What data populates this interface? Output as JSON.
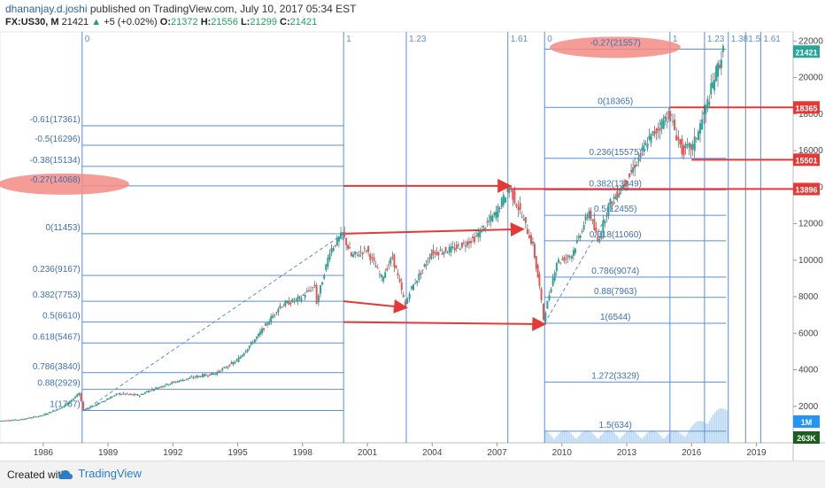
{
  "header": {
    "author": "dhananjay.d.joshi",
    "published": "published on TradingView.com, July 10, 2017 05:34 EST",
    "symbol": "FX:US30, M",
    "last": "21421",
    "change": "+5 (+0.02%)",
    "o_label": "O:",
    "o": "21372",
    "h_label": "H:",
    "h": "21556",
    "l_label": "L:",
    "l": "21299",
    "c_label": "C:",
    "c": "21421"
  },
  "footer": {
    "created_with": "Created with",
    "brand": "TradingView"
  },
  "colors": {
    "candle_up": "#26a69a",
    "candle_down": "#ef5350",
    "fib": "#5b8ed6",
    "arrow": "#e53935",
    "highlight": "#f28b82"
  },
  "chart_data": {
    "type": "candlestick",
    "x_ticks": [
      "1986",
      "1989",
      "1992",
      "1995",
      "1998",
      "2001",
      "2004",
      "2007",
      "2010",
      "2013",
      "2016",
      "2019"
    ],
    "y_ticks": [
      "22000",
      "20000",
      "18000",
      "16000",
      "14000",
      "12000",
      "10000",
      "8000",
      "6000",
      "4000",
      "2000"
    ],
    "ylim": [
      0,
      22500
    ],
    "price_tags": [
      {
        "label": "21421",
        "value": 21421,
        "color": "#26a69a"
      },
      {
        "label": "18365",
        "value": 18365,
        "color": "#e53935"
      },
      {
        "label": "15501",
        "value": 15501,
        "color": "#e53935"
      },
      {
        "label": "13896",
        "value": 13896,
        "color": "#e53935"
      },
      {
        "label": "1M",
        "color": "#2196f3"
      },
      {
        "label": "263K",
        "color": "#1b5e20"
      }
    ],
    "fib_retracement_1": {
      "x_start": 1987.8,
      "x_end": 1999.9,
      "levels": [
        {
          "label": "-0.61(17361)",
          "value": 17361
        },
        {
          "label": "-0.5(16296)",
          "value": 16296
        },
        {
          "label": "-0.38(15134)",
          "value": 15134
        },
        {
          "label": "-0.27(14068)",
          "value": 14068,
          "highlight": true
        },
        {
          "label": "0(11453)",
          "value": 11453
        },
        {
          "label": "0.236(9167)",
          "value": 9167
        },
        {
          "label": "0.382(7753)",
          "value": 7753
        },
        {
          "label": "0.5(6610)",
          "value": 6610
        },
        {
          "label": "0.618(5467)",
          "value": 5467
        },
        {
          "label": "0.786(3840)",
          "value": 3840
        },
        {
          "label": "0.88(2929)",
          "value": 2929
        },
        {
          "label": "1(1767)",
          "value": 1767
        }
      ]
    },
    "fib_retracement_2": {
      "x_start": 2009.2,
      "x_end": 2017.6,
      "levels": [
        {
          "label": "-0.27(21557)",
          "value": 21557,
          "highlight": true
        },
        {
          "label": "0(18365)",
          "value": 18365
        },
        {
          "label": "0.236(15575)",
          "value": 15575
        },
        {
          "label": "0.382(13849)",
          "value": 13849
        },
        {
          "label": "0.5(12455)",
          "value": 12455
        },
        {
          "label": "0.618(11060)",
          "value": 11060
        },
        {
          "label": "0.786(9074)",
          "value": 9074
        },
        {
          "label": "0.88(7963)",
          "value": 7963
        },
        {
          "label": "1(6544)",
          "value": 6544
        },
        {
          "label": "1.272(3329)",
          "value": 3329
        },
        {
          "label": "1.5(634)",
          "value": 634
        }
      ]
    },
    "fib_time_zones": [
      {
        "label": "0",
        "year": 1987.8
      },
      {
        "label": "1",
        "year": 1999.9
      },
      {
        "label": "1.23",
        "year": 2002.8
      },
      {
        "label": "1.61",
        "year": 2007.5
      },
      {
        "label": "0",
        "year": 2009.2
      },
      {
        "label": "1",
        "year": 2015.0
      },
      {
        "label": "1.23",
        "year": 2016.6
      },
      {
        "label": "1.38",
        "year": 2017.7
      },
      {
        "label": "1.5",
        "year": 2018.5
      },
      {
        "label": "1.61",
        "year": 2019.2
      }
    ],
    "arrows": [
      {
        "x1": 1999.9,
        "y1": 14068,
        "x2": 2007.6,
        "y2": 14068
      },
      {
        "x1": 1999.9,
        "y1": 11453,
        "x2": 2008.2,
        "y2": 11700
      },
      {
        "x1": 1999.9,
        "y1": 7753,
        "x2": 2002.8,
        "y2": 7400
      },
      {
        "x1": 1999.9,
        "y1": 6610,
        "x2": 2009.2,
        "y2": 6500
      }
    ],
    "resistance_lines": [
      {
        "x1": 2015.0,
        "x2": 2020.7,
        "value": 18365
      },
      {
        "x1": 2016.0,
        "x2": 2020.7,
        "value": 15501
      },
      {
        "x1": 2007.5,
        "x2": 2020.7,
        "value": 13896
      }
    ],
    "price_path": [
      [
        1984.0,
        1200
      ],
      [
        1985.0,
        1280
      ],
      [
        1986.0,
        1500
      ],
      [
        1987.0,
        2000
      ],
      [
        1987.7,
        2700
      ],
      [
        1987.9,
        1800
      ],
      [
        1988.5,
        2100
      ],
      [
        1989.5,
        2700
      ],
      [
        1990.5,
        2600
      ],
      [
        1991.0,
        2900
      ],
      [
        1992.0,
        3300
      ],
      [
        1993.0,
        3600
      ],
      [
        1994.0,
        3800
      ],
      [
        1995.0,
        4500
      ],
      [
        1996.0,
        5900
      ],
      [
        1997.0,
        7500
      ],
      [
        1997.9,
        7900
      ],
      [
        1998.6,
        8600
      ],
      [
        1998.7,
        7700
      ],
      [
        1999.3,
        10500
      ],
      [
        1999.9,
        11453
      ],
      [
        2000.3,
        10200
      ],
      [
        2001.0,
        10600
      ],
      [
        2001.7,
        9000
      ],
      [
        2002.2,
        10200
      ],
      [
        2002.8,
        7500
      ],
      [
        2003.0,
        8300
      ],
      [
        2003.6,
        9500
      ],
      [
        2004.0,
        10400
      ],
      [
        2005.0,
        10600
      ],
      [
        2006.0,
        11200
      ],
      [
        2007.0,
        12600
      ],
      [
        2007.6,
        14000
      ],
      [
        2008.2,
        12400
      ],
      [
        2008.7,
        10800
      ],
      [
        2009.0,
        8500
      ],
      [
        2009.2,
        6800
      ],
      [
        2009.8,
        9900
      ],
      [
        2010.5,
        10300
      ],
      [
        2011.3,
        12700
      ],
      [
        2011.7,
        11000
      ],
      [
        2012.2,
        13000
      ],
      [
        2013.0,
        14300
      ],
      [
        2014.0,
        16500
      ],
      [
        2015.0,
        18000
      ],
      [
        2015.6,
        16000
      ],
      [
        2016.1,
        16200
      ],
      [
        2016.7,
        18300
      ],
      [
        2017.1,
        20000
      ],
      [
        2017.5,
        21421
      ]
    ],
    "volume_span": [
      2009.2,
      2017.6
    ]
  }
}
